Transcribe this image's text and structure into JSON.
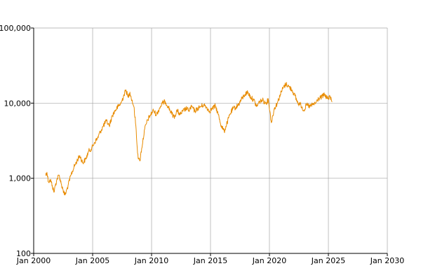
{
  "colors": {
    "series": "#e88b00",
    "grid": "#a6a6a6",
    "axis": "#000000",
    "background": "#ffffff"
  },
  "chart_data": {
    "type": "line",
    "title": "",
    "xlabel": "",
    "ylabel": "",
    "y_scale": "log",
    "xlim": [
      "2000-01-01",
      "2030-01-01"
    ],
    "ylim": [
      100,
      100000
    ],
    "grid": true,
    "x_ticks": [
      "Jan 2000",
      "Jan 2005",
      "Jan 2010",
      "Jan 2015",
      "Jan 2020",
      "Jan 2025",
      "Jan 2030"
    ],
    "y_ticks": [
      "100",
      "1,000",
      "10,000",
      "100,000"
    ],
    "series": [
      {
        "x": [
          "2001-01-01",
          "2001-02-15",
          "2001-04-01",
          "2001-06-01",
          "2001-08-01",
          "2001-09-20",
          "2001-11-01",
          "2002-01-01",
          "2002-03-01",
          "2002-05-01",
          "2002-07-01",
          "2002-08-15",
          "2002-10-01",
          "2002-12-01",
          "2003-03-01",
          "2003-06-01",
          "2003-09-01",
          "2003-12-01",
          "2004-03-01",
          "2004-06-01",
          "2004-09-01",
          "2004-12-01",
          "2005-03-01",
          "2005-06-01",
          "2005-09-01",
          "2005-12-01",
          "2006-03-01",
          "2006-06-01",
          "2006-09-01",
          "2006-12-01",
          "2007-03-01",
          "2007-06-01",
          "2007-09-01",
          "2007-11-01",
          "2008-01-01",
          "2008-03-01",
          "2008-05-01",
          "2008-07-01",
          "2008-09-01",
          "2008-10-15",
          "2008-11-20",
          "2009-01-01",
          "2009-03-01",
          "2009-06-01",
          "2009-09-01",
          "2009-12-01",
          "2010-03-01",
          "2010-06-01",
          "2010-09-01",
          "2010-12-01",
          "2011-03-01",
          "2011-06-01",
          "2011-09-01",
          "2011-12-01",
          "2012-03-01",
          "2012-06-01",
          "2012-09-01",
          "2012-12-01",
          "2013-03-01",
          "2013-06-01",
          "2013-09-01",
          "2013-12-01",
          "2014-03-01",
          "2014-06-01",
          "2014-09-01",
          "2014-12-01",
          "2015-03-01",
          "2015-06-01",
          "2015-09-01",
          "2015-12-01",
          "2016-03-01",
          "2016-06-01",
          "2016-09-01",
          "2016-12-01",
          "2017-03-01",
          "2017-06-01",
          "2017-09-01",
          "2017-12-01",
          "2018-03-01",
          "2018-06-01",
          "2018-09-01",
          "2018-12-01",
          "2019-03-01",
          "2019-06-01",
          "2019-09-01",
          "2019-12-01",
          "2020-03-01",
          "2020-06-01",
          "2020-09-01",
          "2020-12-01",
          "2021-03-01",
          "2021-06-01",
          "2021-09-01",
          "2021-12-01",
          "2022-03-01",
          "2022-06-01",
          "2022-09-01",
          "2022-12-01",
          "2023-03-01",
          "2023-06-01",
          "2023-09-01",
          "2023-12-01",
          "2024-03-01",
          "2024-06-01",
          "2024-09-01",
          "2024-12-01",
          "2025-03-01",
          "2025-05-01"
        ],
        "y": [
          1100,
          1200,
          900,
          950,
          800,
          650,
          800,
          1000,
          1100,
          850,
          700,
          600,
          650,
          800,
          1100,
          1400,
          1700,
          2000,
          1600,
          1800,
          2300,
          2500,
          3000,
          3400,
          4200,
          5000,
          5800,
          5000,
          6800,
          8000,
          9000,
          10000,
          13000,
          15000,
          12000,
          14000,
          11000,
          9000,
          5000,
          2500,
          1800,
          1700,
          2500,
          4500,
          6000,
          7000,
          8000,
          7000,
          8500,
          10000,
          10500,
          9000,
          7500,
          6500,
          8000,
          7000,
          7800,
          8500,
          8000,
          9000,
          7800,
          8500,
          9000,
          9500,
          8800,
          7800,
          8500,
          9200,
          7000,
          5000,
          4200,
          5500,
          7200,
          8500,
          8800,
          9800,
          11500,
          13000,
          14000,
          12000,
          11000,
          9000,
          10500,
          11000,
          10000,
          11000,
          5500,
          8500,
          10000,
          13000,
          16000,
          18000,
          16500,
          15000,
          12500,
          10000,
          9500,
          8000,
          9500,
          9000,
          9500,
          10000,
          11500,
          12000,
          13000,
          11500,
          12000,
          10500
        ]
      }
    ]
  }
}
